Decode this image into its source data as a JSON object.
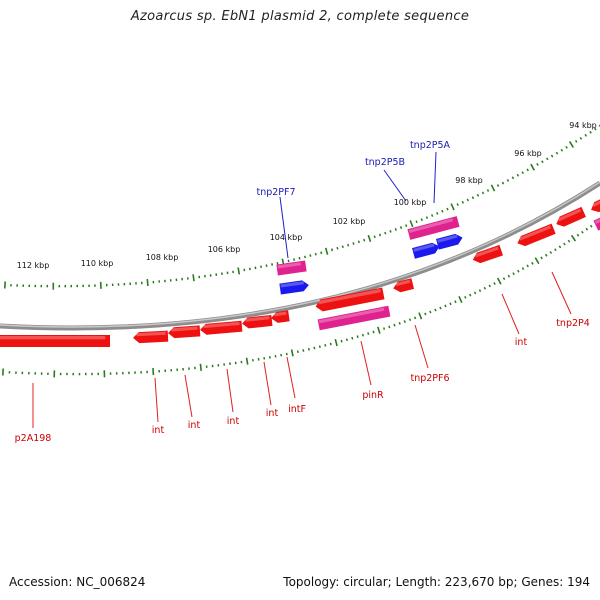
{
  "title": "Azoarcus sp. EbN1 plasmid 2, complete sequence",
  "footer": {
    "accession": "Accession: NC_006824",
    "topology": "Topology: circular; Length: 223,670 bp; Genes: 194"
  },
  "colors": {
    "backbone": "#808080",
    "tick": "#2b7a1f",
    "gene_red": "#ee1111",
    "gene_pink": "#e0228f",
    "gene_blue": "#1a1aee",
    "label_red": "#cc0000",
    "label_blue": "#1b1bb3",
    "leader_red": "#e02020",
    "leader_blue": "#2020cc"
  },
  "ticks": {
    "labels": [
      "112 kbp",
      "110 kbp",
      "108 kbp",
      "106 kbp",
      "104 kbp",
      "102 kbp",
      "100 kbp",
      "98 kbp",
      "96 kbp",
      "94 kbp"
    ]
  },
  "genes": {
    "labels": [
      "p2A198",
      "int",
      "int",
      "int",
      "int",
      "intF",
      "pinR",
      "tnp2PF6",
      "int",
      "tnp2P4",
      "tnp2PF7",
      "tnp2P5B",
      "tnp2P5A"
    ]
  }
}
